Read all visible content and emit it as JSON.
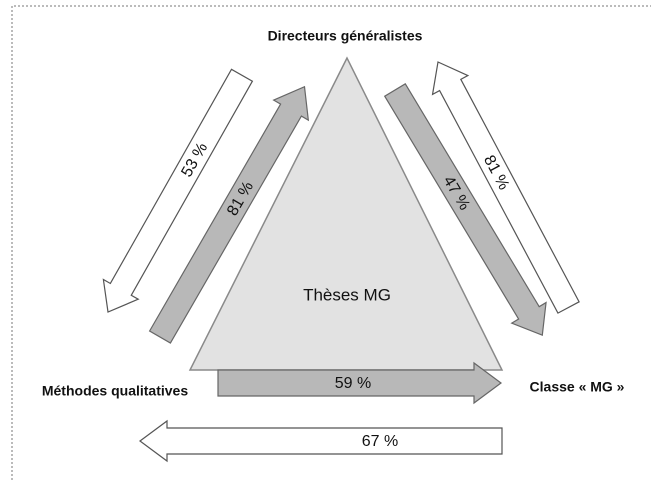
{
  "nodes": [
    {
      "label": "Directeurs généralistes"
    },
    {
      "label": "Thèses MG"
    },
    {
      "label": "Méthodes qualitatives"
    },
    {
      "label": "Classe « MG »"
    }
  ],
  "arrows": [
    {
      "label": "53 %"
    },
    {
      "label": "81 %"
    },
    {
      "label": "47 %"
    },
    {
      "label": "81 %"
    },
    {
      "label": "59 %"
    },
    {
      "label": "67 %"
    }
  ]
}
